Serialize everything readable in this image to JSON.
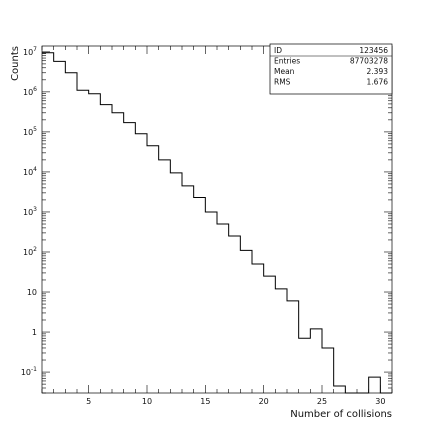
{
  "chart_data": {
    "type": "histogram",
    "xlabel": "Number of collisions",
    "ylabel": "Counts",
    "xlim": [
      1,
      31
    ],
    "ylim": [
      0.03,
      14000000
    ],
    "yscale": "log",
    "grid": false,
    "x_ticks": [
      5,
      10,
      15,
      20,
      25,
      30
    ],
    "x_tick_labels": [
      "5",
      "10",
      "15",
      "20",
      "25",
      "30"
    ],
    "y_ticks": [
      {
        "value": 0.1,
        "base": "10",
        "exp": "-1"
      },
      {
        "value": 1,
        "base": "1",
        "exp": ""
      },
      {
        "value": 10,
        "base": "10",
        "exp": ""
      },
      {
        "value": 100,
        "base": "10",
        "exp": "2"
      },
      {
        "value": 1000,
        "base": "10",
        "exp": "3"
      },
      {
        "value": 10000,
        "base": "10",
        "exp": "4"
      },
      {
        "value": 100000,
        "base": "10",
        "exp": "5"
      },
      {
        "value": 1000000,
        "base": "10",
        "exp": "6"
      },
      {
        "value": 10000000,
        "base": "10",
        "exp": "7"
      }
    ],
    "bins": [
      {
        "lo": 1,
        "hi": 2,
        "count": 9500000
      },
      {
        "lo": 2,
        "hi": 3,
        "count": 5800000
      },
      {
        "lo": 3,
        "hi": 4,
        "count": 3000000
      },
      {
        "lo": 4,
        "hi": 5,
        "count": 1100000
      },
      {
        "lo": 5,
        "hi": 6,
        "count": 900000
      },
      {
        "lo": 6,
        "hi": 7,
        "count": 480000
      },
      {
        "lo": 7,
        "hi": 8,
        "count": 300000
      },
      {
        "lo": 8,
        "hi": 9,
        "count": 170000
      },
      {
        "lo": 9,
        "hi": 10,
        "count": 90000
      },
      {
        "lo": 10,
        "hi": 11,
        "count": 45000
      },
      {
        "lo": 11,
        "hi": 12,
        "count": 20000
      },
      {
        "lo": 12,
        "hi": 13,
        "count": 9500
      },
      {
        "lo": 13,
        "hi": 14,
        "count": 4500
      },
      {
        "lo": 14,
        "hi": 15,
        "count": 2300
      },
      {
        "lo": 15,
        "hi": 16,
        "count": 1000
      },
      {
        "lo": 16,
        "hi": 17,
        "count": 500
      },
      {
        "lo": 17,
        "hi": 18,
        "count": 250
      },
      {
        "lo": 18,
        "hi": 19,
        "count": 110
      },
      {
        "lo": 19,
        "hi": 20,
        "count": 50
      },
      {
        "lo": 20,
        "hi": 21,
        "count": 25
      },
      {
        "lo": 21,
        "hi": 22,
        "count": 12
      },
      {
        "lo": 22,
        "hi": 23,
        "count": 6
      },
      {
        "lo": 23,
        "hi": 24,
        "count": 0.7
      },
      {
        "lo": 24,
        "hi": 25,
        "count": 1.2
      },
      {
        "lo": 25,
        "hi": 26,
        "count": 0.4
      },
      {
        "lo": 26,
        "hi": 27,
        "count": 0.045
      },
      {
        "lo": 27,
        "hi": 28,
        "count": 0
      },
      {
        "lo": 28,
        "hi": 29,
        "count": 0
      },
      {
        "lo": 29,
        "hi": 30,
        "count": 0.075
      },
      {
        "lo": 30,
        "hi": 31,
        "count": 0
      }
    ],
    "stats_box": [
      {
        "label": "ID",
        "value": "123456"
      },
      {
        "label": "Entries",
        "value": "87703278"
      },
      {
        "label": "Mean",
        "value": "2.393"
      },
      {
        "label": "RMS",
        "value": "1.676"
      }
    ]
  }
}
